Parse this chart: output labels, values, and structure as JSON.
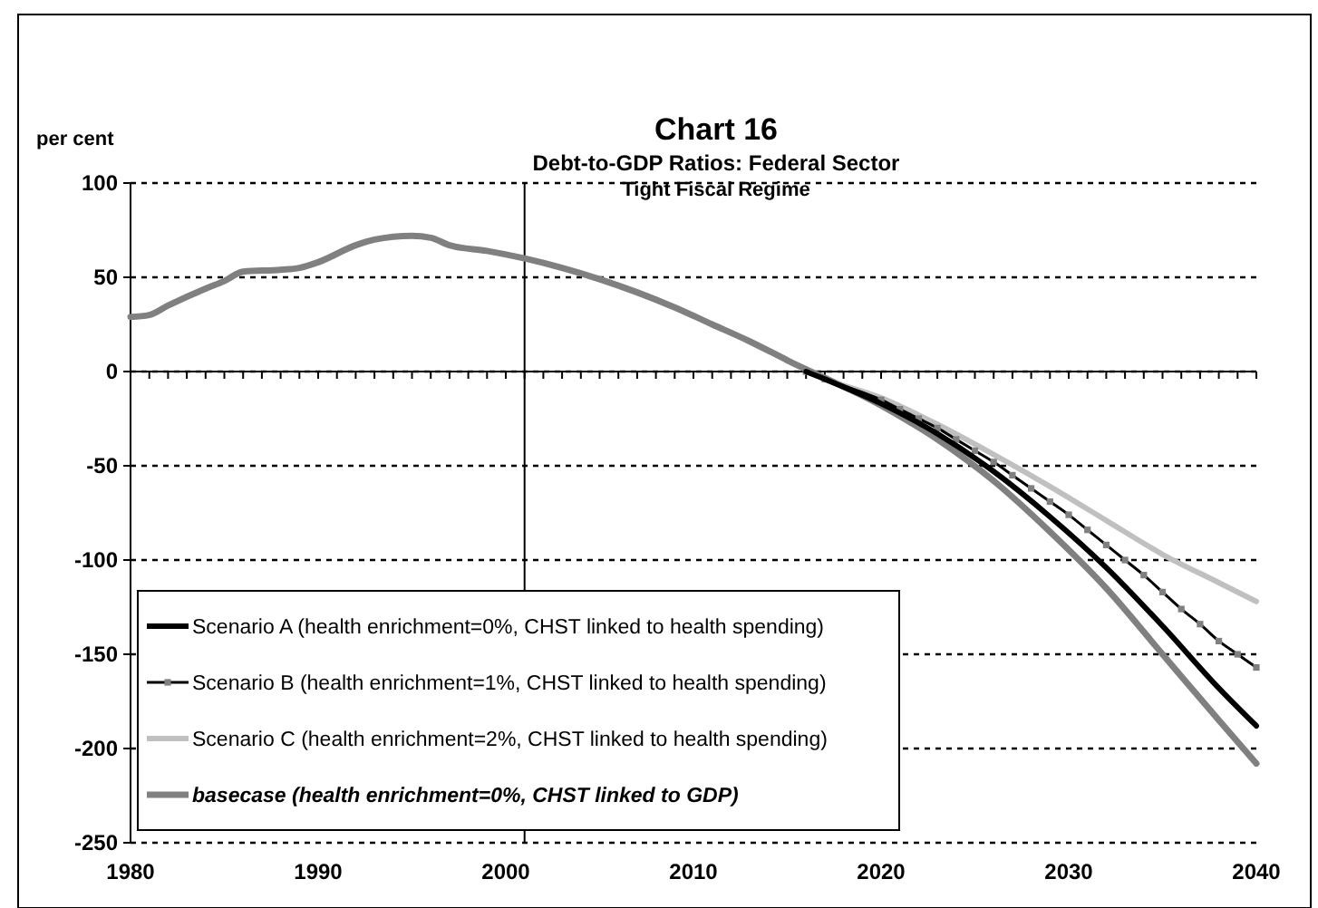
{
  "chart_data": {
    "type": "line",
    "title": "Chart 16",
    "subtitle": "Debt-to-GDP Ratios: Federal Sector",
    "annotations": [
      "Tight Fiscal Regime"
    ],
    "ylabel": "per cent",
    "xlim": [
      1980,
      2040
    ],
    "xticks": [
      1980,
      1990,
      2000,
      2010,
      2020,
      2030,
      2040
    ],
    "ylim": [
      -250,
      100
    ],
    "yticks": [
      -250,
      -200,
      -150,
      -100,
      -50,
      0,
      50,
      100
    ],
    "grid": "y",
    "legend": "bottom left",
    "line_style": "solid",
    "ref_lines": [
      {
        "axis": "x",
        "value": 2001,
        "color": "#000000"
      }
    ],
    "series": [
      {
        "name": "Scenario A (health enrichment=0%, CHST linked to health spending)",
        "color": "#000000",
        "x": [
          2016,
          2017,
          2020,
          2023,
          2026,
          2029,
          2032,
          2035,
          2038,
          2040
        ],
        "values": [
          0,
          -4,
          -17,
          -33,
          -53,
          -77,
          -104,
          -135,
          -168,
          -188
        ]
      },
      {
        "name": "Scenario B (health enrichment=1%, CHST linked to health spending)",
        "color": "#000000",
        "marker": "square",
        "x": [
          2016,
          2017,
          2020,
          2021,
          2022,
          2023,
          2024,
          2025,
          2026,
          2027,
          2028,
          2029,
          2030,
          2031,
          2032,
          2033,
          2034,
          2035,
          2036,
          2037,
          2038,
          2039,
          2040
        ],
        "values": [
          0,
          -4,
          -15,
          -20,
          -25,
          -30,
          -36,
          -42,
          -48,
          -55,
          -62,
          -69,
          -76,
          -84,
          -92,
          -100,
          -108,
          -117,
          -126,
          -134,
          -143,
          -150,
          -157
        ]
      },
      {
        "name": "Scenario C (health enrichment=2%, CHST linked to health spending)",
        "color": "#c0c0c0",
        "x": [
          2016,
          2017,
          2020,
          2023,
          2026,
          2029,
          2032,
          2035,
          2038,
          2040
        ],
        "values": [
          0,
          -4,
          -14,
          -28,
          -44,
          -61,
          -79,
          -97,
          -112,
          -122
        ]
      },
      {
        "name": "basecase (health enrichment=0%, CHST linked to GDP)",
        "color": "#808080",
        "x": [
          1980,
          1981,
          1982,
          1984,
          1985,
          1986,
          1988,
          1989,
          1990,
          1992,
          1993,
          1995,
          1996,
          1997,
          1999,
          2001,
          2003,
          2005,
          2007,
          2009,
          2011,
          2013,
          2015,
          2020,
          2023,
          2026,
          2029,
          2032,
          2035,
          2038,
          2040
        ],
        "values": [
          29,
          30,
          35,
          44,
          48,
          53,
          54,
          55,
          58,
          67,
          70,
          72,
          71,
          67,
          64,
          60,
          55,
          49,
          42,
          34,
          25,
          16,
          6,
          -18,
          -36,
          -58,
          -85,
          -115,
          -150,
          -185,
          -208
        ]
      }
    ]
  }
}
